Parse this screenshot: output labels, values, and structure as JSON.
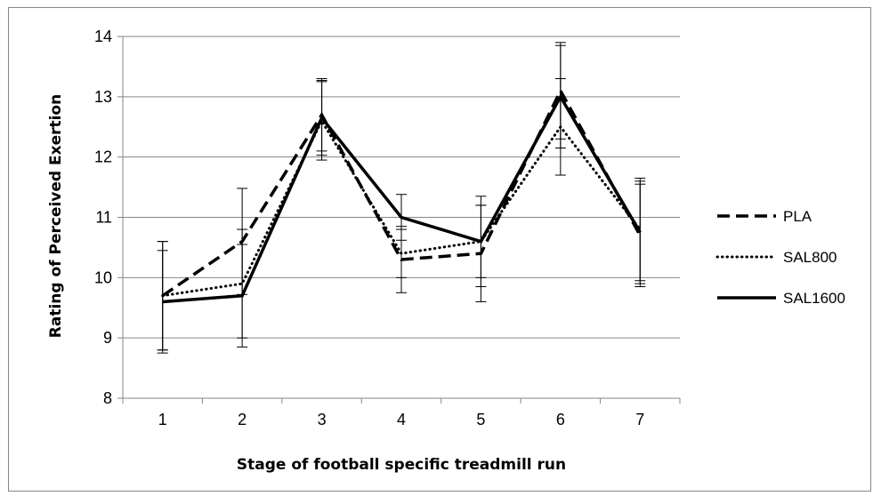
{
  "chart_data": {
    "type": "line",
    "title": "",
    "xlabel": "Stage of football specific treadmill run",
    "ylabel": "Rating of Perceived Exertion",
    "categories": [
      "1",
      "2",
      "3",
      "4",
      "5",
      "6",
      "7"
    ],
    "ylim": [
      8,
      14
    ],
    "yticks": [
      8,
      9,
      10,
      11,
      12,
      13,
      14
    ],
    "grid": "horizontal",
    "legend_position": "right",
    "series": [
      {
        "name": "PLA",
        "style": "dashed",
        "color": "#000000",
        "values": [
          9.7,
          10.6,
          12.7,
          10.3,
          10.4,
          13.1,
          10.7
        ],
        "errors": [
          0.9,
          0.88,
          0.6,
          0.55,
          0.8,
          0.8,
          0.85
        ]
      },
      {
        "name": "SAL800",
        "style": "dotted",
        "color": "#000000",
        "values": [
          9.7,
          9.9,
          12.6,
          10.4,
          10.6,
          12.5,
          10.8
        ],
        "errors": [
          0.9,
          0.9,
          0.65,
          0.4,
          0.6,
          0.8,
          0.85
        ]
      },
      {
        "name": "SAL1600",
        "style": "solid",
        "color": "#000000",
        "values": [
          9.6,
          9.7,
          12.65,
          11.0,
          10.6,
          13.0,
          10.75
        ],
        "errors": [
          0.85,
          0.85,
          0.62,
          0.38,
          0.75,
          0.85,
          0.85
        ]
      }
    ]
  }
}
